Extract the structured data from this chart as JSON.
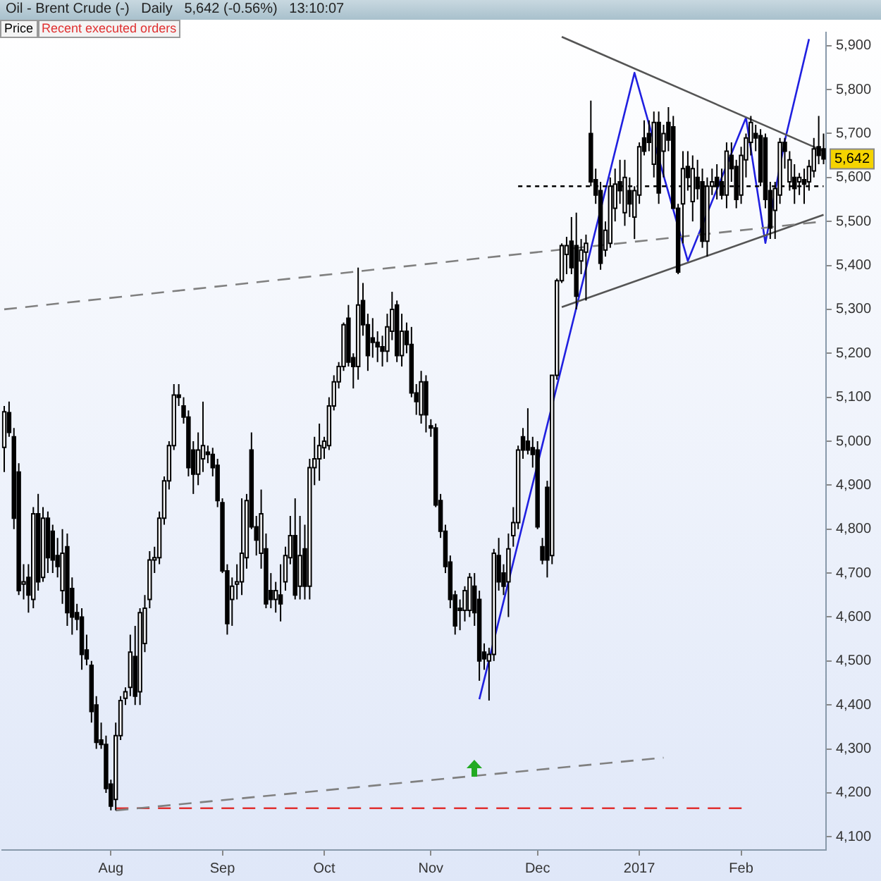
{
  "chart_data": {
    "type": "candlestick",
    "title": "Oil - Brent Crude (-)   Daily   5,642 (-0.56%)   13:10:07",
    "annotations": [
      "Price",
      "Recent executed orders",
      {
        "text": "5,642",
        "y": 5642
      }
    ],
    "categories": [
      null,
      null,
      null,
      null,
      null,
      null,
      null,
      null,
      null,
      null,
      null,
      null,
      null,
      null,
      null,
      null,
      null,
      null,
      null,
      null,
      null,
      null,
      "Aug",
      null,
      null,
      null,
      null,
      null,
      null,
      null,
      null,
      null,
      null,
      null,
      null,
      null,
      null,
      null,
      null,
      null,
      null,
      null,
      null,
      null,
      null,
      "Sep",
      null,
      null,
      null,
      null,
      null,
      null,
      null,
      null,
      null,
      null,
      null,
      null,
      null,
      null,
      null,
      null,
      null,
      null,
      null,
      null,
      "Oct",
      null,
      null,
      null,
      null,
      null,
      null,
      null,
      null,
      null,
      null,
      null,
      null,
      null,
      null,
      null,
      null,
      null,
      null,
      null,
      null,
      null,
      "Nov",
      null,
      null,
      null,
      null,
      null,
      null,
      null,
      null,
      null,
      null,
      null,
      null,
      null,
      null,
      null,
      null,
      null,
      null,
      null,
      null,
      null,
      "Dec",
      null,
      null,
      null,
      null,
      null,
      null,
      null,
      null,
      null,
      null,
      null,
      null,
      null,
      null,
      null,
      null,
      null,
      null,
      null,
      null,
      "2017",
      null,
      null,
      null,
      null,
      null,
      null,
      null,
      null,
      null,
      null,
      null,
      null,
      null,
      null,
      null,
      null,
      null,
      null,
      null,
      null,
      "Feb",
      null,
      null,
      null,
      null,
      null,
      null,
      null,
      null,
      null,
      null,
      null,
      null,
      null,
      null,
      null,
      null,
      null
    ],
    "ohlc": [
      [
        4986,
        5080,
        4930,
        5067
      ],
      [
        5065,
        5090,
        5010,
        5020
      ],
      [
        5010,
        5030,
        4800,
        4825
      ],
      [
        4930,
        4950,
        4650,
        4660
      ],
      [
        4675,
        4720,
        4640,
        4680
      ],
      [
        4690,
        4720,
        4610,
        4650
      ],
      [
        4640,
        4850,
        4620,
        4835
      ],
      [
        4835,
        4880,
        4660,
        4680
      ],
      [
        4690,
        4850,
        4680,
        4825
      ],
      [
        4825,
        4840,
        4700,
        4735
      ],
      [
        4795,
        4810,
        4700,
        4730
      ],
      [
        4740,
        4780,
        4690,
        4715
      ],
      [
        4660,
        4800,
        4630,
        4745
      ],
      [
        4760,
        4790,
        4580,
        4610
      ],
      [
        4665,
        4690,
        4560,
        4600
      ],
      [
        4610,
        4630,
        4570,
        4595
      ],
      [
        4600,
        4620,
        4480,
        4515
      ],
      [
        4525,
        4560,
        4490,
        4505
      ],
      [
        4490,
        4500,
        4360,
        4385
      ],
      [
        4400,
        4420,
        4300,
        4315
      ],
      [
        4320,
        4360,
        4300,
        4310
      ],
      [
        4310,
        4330,
        4200,
        4210
      ],
      [
        4220,
        4230,
        4160,
        4170
      ],
      [
        4185,
        4360,
        4160,
        4330
      ],
      [
        4330,
        4420,
        4320,
        4410
      ],
      [
        4415,
        4440,
        4400,
        4430
      ],
      [
        4440,
        4560,
        4420,
        4520
      ],
      [
        4510,
        4580,
        4400,
        4420
      ],
      [
        4430,
        4620,
        4400,
        4610
      ],
      [
        4540,
        4650,
        4520,
        4620
      ],
      [
        4640,
        4750,
        4620,
        4730
      ],
      [
        4730,
        4760,
        4700,
        4735
      ],
      [
        4735,
        4840,
        4720,
        4825
      ],
      [
        4825,
        4920,
        4810,
        4910
      ],
      [
        4910,
        5000,
        4890,
        4990
      ],
      [
        4990,
        5130,
        4980,
        5105
      ],
      [
        5105,
        5130,
        5080,
        5100
      ],
      [
        5080,
        5100,
        5040,
        5055
      ],
      [
        5055,
        5070,
        4920,
        4940
      ],
      [
        4980,
        5000,
        4880,
        4925
      ],
      [
        4925,
        5020,
        4900,
        4980
      ],
      [
        4960,
        5090,
        4930,
        4990
      ],
      [
        4975,
        4990,
        4950,
        4970
      ],
      [
        4970,
        4985,
        4920,
        4940
      ],
      [
        4945,
        4960,
        4850,
        4865
      ],
      [
        4860,
        4870,
        4700,
        4705
      ],
      [
        4705,
        4720,
        4560,
        4585
      ],
      [
        4640,
        4690,
        4580,
        4670
      ],
      [
        4675,
        4720,
        4640,
        4680
      ],
      [
        4680,
        4870,
        4650,
        4745
      ],
      [
        4735,
        4880,
        4710,
        4865
      ],
      [
        4980,
        5020,
        4800,
        4805
      ],
      [
        4805,
        4830,
        4740,
        4775
      ],
      [
        4745,
        4890,
        4710,
        4835
      ],
      [
        4755,
        4790,
        4620,
        4630
      ],
      [
        4660,
        4700,
        4620,
        4640
      ],
      [
        4640,
        4680,
        4610,
        4660
      ],
      [
        4650,
        4720,
        4590,
        4630
      ],
      [
        4680,
        4760,
        4660,
        4740
      ],
      [
        4735,
        4830,
        4720,
        4785
      ],
      [
        4785,
        4870,
        4640,
        4650
      ],
      [
        4670,
        4830,
        4640,
        4740
      ],
      [
        4755,
        4810,
        4640,
        4670
      ],
      [
        4670,
        4960,
        4640,
        4940
      ],
      [
        4940,
        5010,
        4900,
        4960
      ],
      [
        4960,
        5040,
        4910,
        4990
      ],
      [
        4985,
        5010,
        4960,
        5000
      ],
      [
        4990,
        5100,
        4980,
        5080
      ],
      [
        5080,
        5150,
        5070,
        5135
      ],
      [
        5135,
        5180,
        5120,
        5170
      ],
      [
        5170,
        5270,
        5160,
        5265
      ],
      [
        5280,
        5310,
        5170,
        5180
      ],
      [
        5190,
        5200,
        5120,
        5170
      ],
      [
        5170,
        5395,
        5140,
        5310
      ],
      [
        5320,
        5360,
        5240,
        5265
      ],
      [
        5265,
        5290,
        5160,
        5195
      ],
      [
        5235,
        5280,
        5190,
        5225
      ],
      [
        5225,
        5250,
        5180,
        5215
      ],
      [
        5215,
        5240,
        5170,
        5205
      ],
      [
        5205,
        5290,
        5180,
        5260
      ],
      [
        5250,
        5340,
        5230,
        5300
      ],
      [
        5310,
        5320,
        5180,
        5195
      ],
      [
        5195,
        5290,
        5170,
        5250
      ],
      [
        5250,
        5270,
        5200,
        5220
      ],
      [
        5220,
        5260,
        5100,
        5110
      ],
      [
        5110,
        5130,
        5060,
        5090
      ],
      [
        5060,
        5160,
        5040,
        5135
      ],
      [
        5135,
        5150,
        5020,
        5060
      ],
      [
        5035,
        5050,
        5010,
        5030
      ],
      [
        5030,
        5040,
        4850,
        4855
      ],
      [
        4865,
        4880,
        4780,
        4795
      ],
      [
        4795,
        4810,
        4700,
        4715
      ],
      [
        4725,
        4740,
        4620,
        4640
      ],
      [
        4650,
        4660,
        4560,
        4580
      ],
      [
        4620,
        4640,
        4570,
        4615
      ],
      [
        4615,
        4670,
        4590,
        4660
      ],
      [
        4615,
        4700,
        4600,
        4690
      ],
      [
        4670,
        4700,
        4580,
        4610
      ],
      [
        4640,
        4660,
        4455,
        4500
      ],
      [
        4520,
        4540,
        4480,
        4505
      ],
      [
        4500,
        4530,
        4410,
        4515
      ],
      [
        4515,
        4755,
        4500,
        4745
      ],
      [
        4740,
        4780,
        4660,
        4680
      ],
      [
        4700,
        4720,
        4650,
        4670
      ],
      [
        4680,
        4790,
        4600,
        4755
      ],
      [
        4785,
        4850,
        4760,
        4815
      ],
      [
        4815,
        4990,
        4800,
        4980
      ],
      [
        5010,
        5030,
        4960,
        4980
      ],
      [
        5000,
        5075,
        4970,
        4980
      ],
      [
        4985,
        5010,
        4940,
        4970
      ],
      [
        4980,
        5000,
        4800,
        4805
      ],
      [
        4760,
        4780,
        4720,
        4730
      ],
      [
        4895,
        4910,
        4690,
        4730
      ],
      [
        4740,
        5150,
        4720,
        5150
      ],
      [
        5150,
        5370,
        5140,
        5365
      ],
      [
        5365,
        5450,
        5360,
        5445
      ],
      [
        5425,
        5465,
        5380,
        5445
      ],
      [
        5455,
        5510,
        5380,
        5395
      ],
      [
        5445,
        5520,
        5300,
        5330
      ],
      [
        5410,
        5460,
        5380,
        5435
      ],
      [
        5430,
        5470,
        5320,
        5450
      ],
      [
        5700,
        5775,
        5580,
        5590
      ],
      [
        5595,
        5620,
        5540,
        5560
      ],
      [
        5570,
        5590,
        5390,
        5405
      ],
      [
        5435,
        5500,
        5420,
        5480
      ],
      [
        5450,
        5600,
        5440,
        5580
      ],
      [
        5530,
        5620,
        5500,
        5585
      ],
      [
        5590,
        5640,
        5540,
        5570
      ],
      [
        5520,
        5640,
        5490,
        5600
      ],
      [
        5570,
        5600,
        5510,
        5540
      ],
      [
        5510,
        5580,
        5460,
        5570
      ],
      [
        5560,
        5680,
        5540,
        5670
      ],
      [
        5690,
        5730,
        5650,
        5660
      ],
      [
        5700,
        5730,
        5660,
        5680
      ],
      [
        5630,
        5750,
        5600,
        5725
      ],
      [
        5725,
        5750,
        5540,
        5565
      ],
      [
        5660,
        5720,
        5600,
        5700
      ],
      [
        5725,
        5760,
        5660,
        5685
      ],
      [
        5715,
        5740,
        5530,
        5530
      ],
      [
        5530,
        5540,
        5380,
        5385
      ],
      [
        5540,
        5660,
        5450,
        5620
      ],
      [
        5625,
        5660,
        5570,
        5600
      ],
      [
        5545,
        5650,
        5500,
        5620
      ],
      [
        5600,
        5640,
        5550,
        5575
      ],
      [
        5590,
        5620,
        5440,
        5455
      ],
      [
        5455,
        5600,
        5420,
        5580
      ],
      [
        5580,
        5620,
        5560,
        5590
      ],
      [
        5600,
        5630,
        5550,
        5580
      ],
      [
        5590,
        5620,
        5550,
        5560
      ],
      [
        5560,
        5680,
        5530,
        5660
      ],
      [
        5650,
        5680,
        5590,
        5620
      ],
      [
        5625,
        5640,
        5530,
        5550
      ],
      [
        5560,
        5670,
        5540,
        5650
      ],
      [
        5640,
        5700,
        5600,
        5690
      ],
      [
        5680,
        5740,
        5650,
        5725
      ],
      [
        5700,
        5720,
        5660,
        5690
      ],
      [
        5695,
        5710,
        5580,
        5590
      ],
      [
        5690,
        5700,
        5530,
        5550
      ],
      [
        5570,
        5590,
        5460,
        5485
      ],
      [
        5525,
        5590,
        5460,
        5575
      ],
      [
        5560,
        5690,
        5540,
        5680
      ],
      [
        5680,
        5690,
        5620,
        5660
      ],
      [
        5590,
        5660,
        5570,
        5640
      ],
      [
        5600,
        5630,
        5540,
        5575
      ],
      [
        5590,
        5610,
        5560,
        5600
      ],
      [
        5595,
        5620,
        5540,
        5585
      ],
      [
        5590,
        5640,
        5570,
        5625
      ],
      [
        5615,
        5690,
        5600,
        5665
      ],
      [
        5670,
        5740,
        5630,
        5650
      ],
      [
        5665,
        5700,
        5630,
        5642
      ]
    ],
    "series": [
      {
        "type": "line",
        "color": "#808080",
        "line_style": "dashed",
        "values": [
          5300,
          null,
          null,
          null,
          null,
          null,
          null,
          null,
          null,
          null,
          null,
          null,
          null,
          null,
          null,
          null,
          null,
          null,
          null,
          null,
          null,
          null,
          null,
          null,
          null,
          null,
          null,
          null,
          null,
          null,
          null,
          null,
          null,
          null,
          null,
          null,
          null,
          null,
          null,
          null,
          null,
          null,
          null,
          null,
          null,
          null,
          null,
          null,
          null,
          null,
          null,
          null,
          null,
          null,
          null,
          null,
          null,
          null,
          null,
          null,
          null,
          null,
          null,
          null,
          null,
          null,
          null,
          null,
          null,
          null,
          null,
          null,
          null,
          null,
          null,
          null,
          null,
          null,
          null,
          null,
          null,
          null,
          null,
          null,
          null,
          null,
          null,
          null,
          null,
          null,
          null,
          null,
          null,
          null,
          null,
          null,
          null,
          null,
          null,
          null,
          null,
          null,
          null,
          null,
          null,
          null,
          null,
          null,
          null,
          null,
          null,
          null,
          null,
          null,
          null,
          null,
          null,
          null,
          null,
          null,
          null,
          null,
          null,
          null,
          null,
          null,
          null,
          null,
          null,
          null,
          null,
          null,
          null,
          null,
          null,
          null,
          null,
          null,
          null,
          null,
          null,
          null,
          null,
          null,
          null,
          null,
          null,
          null,
          null,
          null,
          null,
          null,
          null,
          null,
          null,
          null,
          null,
          null,
          null,
          null,
          null,
          null,
          null,
          null,
          null,
          null,
          null,
          null,
          null,
          5500
        ]
      },
      {
        "type": "line",
        "color": "#808080",
        "line_style": "dashed",
        "values": [
          null,
          null,
          null,
          null,
          null,
          null,
          null,
          null,
          null,
          null,
          null,
          null,
          null,
          null,
          null,
          null,
          null,
          null,
          null,
          null,
          null,
          null,
          null,
          4160,
          null,
          null,
          null,
          null,
          null,
          null,
          null,
          null,
          null,
          null,
          null,
          null,
          null,
          null,
          null,
          null,
          null,
          null,
          null,
          null,
          null,
          null,
          null,
          null,
          null,
          null,
          null,
          null,
          null,
          null,
          null,
          null,
          null,
          null,
          null,
          null,
          null,
          null,
          null,
          null,
          null,
          null,
          null,
          null,
          null,
          null,
          null,
          null,
          null,
          null,
          null,
          null,
          null,
          null,
          null,
          null,
          null,
          null,
          null,
          null,
          null,
          null,
          null,
          null,
          null,
          null,
          null,
          null,
          null,
          null,
          null,
          null,
          null,
          null,
          null,
          null,
          null,
          null,
          null,
          null,
          null,
          null,
          null,
          null,
          null,
          null,
          null,
          null,
          null,
          null,
          null,
          null,
          null,
          null,
          null,
          null,
          null,
          null,
          null,
          null,
          null,
          null,
          null,
          null,
          null,
          null,
          null,
          null,
          null,
          null,
          null,
          null,
          4280,
          null,
          null,
          null,
          null,
          null,
          null,
          null,
          null,
          null,
          null,
          null,
          null,
          null,
          null,
          null,
          null,
          null,
          null,
          null,
          null,
          null,
          null,
          null,
          null,
          null,
          null,
          null,
          null,
          null,
          null,
          null,
          null,
          null
        ]
      },
      {
        "type": "line",
        "color": "#e03030",
        "line_style": "dashed",
        "values": [
          null,
          null,
          null,
          null,
          null,
          null,
          null,
          null,
          null,
          null,
          null,
          null,
          null,
          null,
          null,
          null,
          null,
          null,
          null,
          null,
          null,
          null,
          null,
          4165,
          null,
          null,
          null,
          null,
          null,
          null,
          null,
          null,
          null,
          null,
          null,
          null,
          null,
          null,
          null,
          null,
          null,
          null,
          null,
          null,
          null,
          null,
          null,
          null,
          null,
          null,
          null,
          null,
          null,
          null,
          null,
          null,
          null,
          null,
          null,
          null,
          null,
          null,
          null,
          null,
          null,
          null,
          null,
          null,
          null,
          null,
          null,
          null,
          null,
          null,
          null,
          null,
          null,
          null,
          null,
          null,
          null,
          null,
          null,
          null,
          null,
          null,
          null,
          null,
          null,
          null,
          null,
          null,
          null,
          null,
          null,
          null,
          null,
          null,
          null,
          null,
          null,
          null,
          null,
          null,
          null,
          null,
          null,
          null,
          null,
          null,
          null,
          null,
          null,
          null,
          null,
          null,
          null,
          null,
          null,
          null,
          null,
          null,
          null,
          null,
          null,
          null,
          null,
          null,
          null,
          null,
          null,
          null,
          null,
          null,
          null,
          null,
          null,
          null,
          null,
          null,
          null,
          null,
          null,
          null,
          null,
          null,
          null,
          null,
          null,
          null,
          null,
          null,
          null,
          4165,
          null,
          null,
          null,
          null,
          null,
          null,
          null,
          null,
          null,
          null,
          null,
          null,
          null,
          null,
          null,
          null
        ]
      },
      {
        "type": "line",
        "color": "#000000",
        "line_style": "dotted",
        "values": [
          null,
          null,
          null,
          null,
          null,
          null,
          null,
          null,
          null,
          null,
          null,
          null,
          null,
          null,
          null,
          null,
          null,
          null,
          null,
          null,
          null,
          null,
          null,
          null,
          null,
          null,
          null,
          null,
          null,
          null,
          null,
          null,
          null,
          null,
          null,
          null,
          null,
          null,
          null,
          null,
          null,
          null,
          null,
          null,
          null,
          null,
          null,
          null,
          null,
          null,
          null,
          null,
          null,
          null,
          null,
          null,
          null,
          null,
          null,
          null,
          null,
          null,
          null,
          null,
          null,
          null,
          null,
          null,
          null,
          null,
          null,
          null,
          null,
          null,
          null,
          null,
          null,
          null,
          null,
          null,
          null,
          null,
          null,
          null,
          null,
          null,
          null,
          null,
          null,
          null,
          null,
          null,
          null,
          null,
          null,
          null,
          null,
          null,
          null,
          null,
          null,
          null,
          null,
          null,
          null,
          null,
          5580,
          null,
          null,
          null,
          null,
          null,
          null,
          null,
          null,
          null,
          null,
          null,
          null,
          null,
          null,
          null,
          null,
          null,
          null,
          null,
          null,
          null,
          null,
          null,
          null,
          null,
          null,
          null,
          null,
          null,
          null,
          null,
          null,
          null,
          null,
          null,
          null,
          null,
          null,
          null,
          null,
          null,
          null,
          null,
          null,
          null,
          null,
          null,
          null,
          null,
          null,
          null,
          null,
          null,
          null,
          null,
          null,
          null,
          null,
          null,
          null,
          null,
          null,
          5580
        ]
      },
      {
        "type": "line",
        "color": "#555555",
        "line_style": "solid",
        "values": [
          null,
          null,
          null,
          null,
          null,
          null,
          null,
          null,
          null,
          null,
          null,
          null,
          null,
          null,
          null,
          null,
          null,
          null,
          null,
          null,
          null,
          null,
          null,
          null,
          null,
          null,
          null,
          null,
          null,
          null,
          null,
          null,
          null,
          null,
          null,
          null,
          null,
          null,
          null,
          null,
          null,
          null,
          null,
          null,
          null,
          null,
          null,
          null,
          null,
          null,
          null,
          null,
          null,
          null,
          null,
          null,
          null,
          null,
          null,
          null,
          null,
          null,
          null,
          null,
          null,
          null,
          null,
          null,
          null,
          null,
          null,
          null,
          null,
          null,
          null,
          null,
          null,
          null,
          null,
          null,
          null,
          null,
          null,
          null,
          null,
          null,
          null,
          null,
          null,
          null,
          null,
          null,
          null,
          null,
          null,
          null,
          null,
          null,
          null,
          null,
          null,
          null,
          null,
          null,
          null,
          null,
          null,
          null,
          null,
          null,
          null,
          null,
          null,
          null,
          null,
          5920,
          null,
          null,
          null,
          null,
          null,
          null,
          null,
          null,
          null,
          null,
          null,
          null,
          null,
          null,
          null,
          null,
          null,
          null,
          null,
          null,
          null,
          null,
          null,
          null,
          null,
          null,
          null,
          null,
          null,
          null,
          null,
          null,
          null,
          null,
          null,
          null,
          null,
          null,
          null,
          null,
          null,
          null,
          null,
          null,
          null,
          null,
          null,
          null,
          null,
          null,
          null,
          null,
          null,
          5660
        ]
      },
      {
        "type": "line",
        "color": "#555555",
        "line_style": "solid",
        "values": [
          null,
          null,
          null,
          null,
          null,
          null,
          null,
          null,
          null,
          null,
          null,
          null,
          null,
          null,
          null,
          null,
          null,
          null,
          null,
          null,
          null,
          null,
          null,
          null,
          null,
          null,
          null,
          null,
          null,
          null,
          null,
          null,
          null,
          null,
          null,
          null,
          null,
          null,
          null,
          null,
          null,
          null,
          null,
          null,
          null,
          null,
          null,
          null,
          null,
          null,
          null,
          null,
          null,
          null,
          null,
          null,
          null,
          null,
          null,
          null,
          null,
          null,
          null,
          null,
          null,
          null,
          null,
          null,
          null,
          null,
          null,
          null,
          null,
          null,
          null,
          null,
          null,
          null,
          null,
          null,
          null,
          null,
          null,
          null,
          null,
          null,
          null,
          null,
          null,
          null,
          null,
          null,
          null,
          null,
          null,
          null,
          null,
          null,
          null,
          null,
          null,
          null,
          null,
          null,
          null,
          null,
          null,
          null,
          null,
          null,
          null,
          null,
          null,
          null,
          null,
          5305,
          null,
          null,
          null,
          null,
          null,
          null,
          null,
          null,
          null,
          null,
          null,
          null,
          null,
          null,
          null,
          null,
          null,
          null,
          null,
          null,
          null,
          null,
          null,
          null,
          null,
          null,
          null,
          null,
          null,
          null,
          null,
          null,
          null,
          null,
          null,
          null,
          null,
          null,
          null,
          null,
          null,
          null,
          null,
          null,
          null,
          null,
          null,
          null,
          null,
          null,
          null,
          null,
          null,
          5515
        ]
      },
      {
        "type": "line",
        "color": "#2020e0",
        "line_style": "solid",
        "values": [
          null,
          null,
          null,
          null,
          null,
          null,
          null,
          null,
          null,
          null,
          null,
          null,
          null,
          null,
          null,
          null,
          null,
          null,
          null,
          null,
          null,
          null,
          null,
          null,
          null,
          null,
          null,
          null,
          null,
          null,
          null,
          null,
          null,
          null,
          null,
          null,
          null,
          null,
          null,
          null,
          null,
          null,
          null,
          null,
          null,
          null,
          null,
          null,
          null,
          null,
          null,
          null,
          null,
          null,
          null,
          null,
          null,
          null,
          null,
          null,
          null,
          null,
          null,
          null,
          null,
          null,
          null,
          null,
          null,
          null,
          null,
          null,
          null,
          null,
          null,
          null,
          null,
          null,
          null,
          null,
          null,
          null,
          null,
          null,
          null,
          null,
          null,
          null,
          null,
          null,
          null,
          null,
          null,
          null,
          null,
          null,
          null,
          null,
          4413,
          null,
          null,
          null,
          null,
          null,
          null,
          null,
          null,
          null,
          null,
          null,
          null,
          null,
          null,
          null,
          null,
          null,
          null,
          null,
          null,
          null,
          null,
          null,
          null,
          null,
          null,
          null,
          null,
          null,
          null,
          null,
          5838,
          null,
          null,
          null,
          null,
          null,
          null,
          null,
          null,
          null,
          null,
          5410,
          null,
          null,
          null,
          null,
          null,
          null,
          null,
          null,
          null,
          null,
          null,
          5736,
          null,
          null,
          null,
          5451,
          null,
          null,
          null,
          5683,
          null,
          null,
          null,
          null,
          5915,
          null,
          null,
          null
        ]
      }
    ],
    "marker": "none",
    "ylim": [
      4070,
      5930
    ],
    "yticks": [
      {
        "value": 4100,
        "label": "4,100"
      },
      {
        "value": 4200,
        "label": "4,200"
      },
      {
        "value": 4300,
        "label": "4,300"
      },
      {
        "value": 4400,
        "label": "4,400"
      },
      {
        "value": 4500,
        "label": "4,500"
      },
      {
        "value": 4600,
        "label": "4,600"
      },
      {
        "value": 4700,
        "label": "4,700"
      },
      {
        "value": 4800,
        "label": "4,800"
      },
      {
        "value": 4900,
        "label": "4,900"
      },
      {
        "value": 5000,
        "label": "5,000"
      },
      {
        "value": 5100,
        "label": "5,100"
      },
      {
        "value": 5200,
        "label": "5,200"
      },
      {
        "value": 5300,
        "label": "5,300"
      },
      {
        "value": 5400,
        "label": "5,400"
      },
      {
        "value": 5500,
        "label": "5,500"
      },
      {
        "value": 5600,
        "label": "5,600"
      },
      {
        "value": 5700,
        "label": "5,700"
      },
      {
        "value": 5800,
        "label": "5,800"
      },
      {
        "value": 5900,
        "label": "5,900"
      }
    ]
  }
}
